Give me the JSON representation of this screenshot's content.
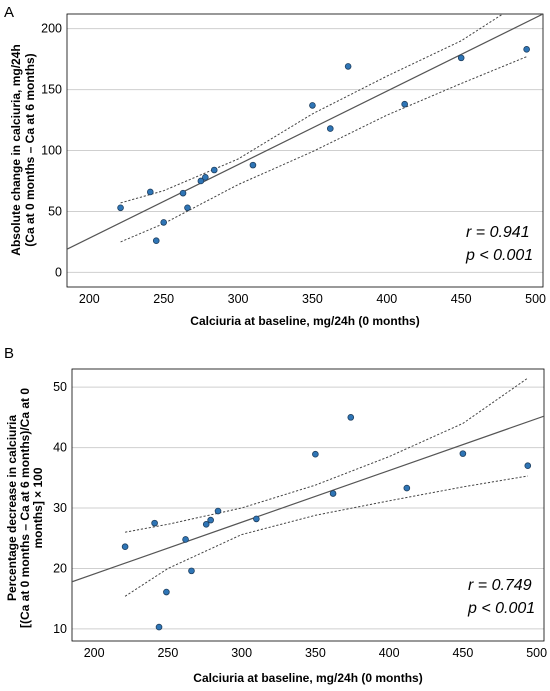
{
  "chart_data": [
    {
      "type": "scatter",
      "panel_label": "A",
      "xlabel": "Calciuria at baseline, mg/24h (0 months)",
      "ylabel_lines": [
        "Absolute change in calciuria, mg/24h",
        "(Ca at 0 months – Ca at 6 months)"
      ],
      "xlim": [
        185,
        505
      ],
      "ylim": [
        -12,
        212
      ],
      "xticks": [
        200,
        250,
        300,
        350,
        400,
        450,
        500
      ],
      "yticks": [
        0,
        50,
        100,
        150,
        200
      ],
      "grid": true,
      "points": [
        {
          "x": 221,
          "y": 53
        },
        {
          "x": 241,
          "y": 66
        },
        {
          "x": 245,
          "y": 26
        },
        {
          "x": 250,
          "y": 41
        },
        {
          "x": 263,
          "y": 65
        },
        {
          "x": 266,
          "y": 53
        },
        {
          "x": 275,
          "y": 75
        },
        {
          "x": 278,
          "y": 78
        },
        {
          "x": 284,
          "y": 84
        },
        {
          "x": 310,
          "y": 88
        },
        {
          "x": 350,
          "y": 137
        },
        {
          "x": 362,
          "y": 118
        },
        {
          "x": 374,
          "y": 169
        },
        {
          "x": 412,
          "y": 138
        },
        {
          "x": 450,
          "y": 176
        },
        {
          "x": 494,
          "y": 183
        }
      ],
      "fit_line": {
        "x": [
          185,
          505
        ],
        "y": [
          19,
          212
        ]
      },
      "ci_upper": {
        "x": [
          221,
          250,
          300,
          350,
          400,
          450,
          478
        ],
        "y": [
          57,
          67,
          93,
          130,
          161,
          190,
          212
        ]
      },
      "ci_lower": {
        "x": [
          221,
          250,
          300,
          350,
          400,
          450,
          494
        ],
        "y": [
          25,
          40,
          72,
          99,
          129,
          155,
          177
        ]
      },
      "stats": {
        "r": "r = 0.941",
        "p": "p < 0.001"
      },
      "colors": {
        "point_fill": "#2e75b6",
        "point_stroke": "#1f3f5f",
        "line": "#555555",
        "grid": "#cfcfcf"
      }
    },
    {
      "type": "scatter",
      "panel_label": "B",
      "xlabel": "Calciuria at baseline, mg/24h (0 months)",
      "ylabel_lines": [
        "Percentage decrease in calciuria",
        "[(Ca at 0 months – Ca at 6 months)/Ca at 0",
        "months] × 100"
      ],
      "xlim": [
        185,
        505
      ],
      "ylim": [
        8,
        53
      ],
      "xticks": [
        200,
        250,
        300,
        350,
        400,
        450,
        500
      ],
      "yticks": [
        10,
        20,
        30,
        40,
        50
      ],
      "grid": true,
      "points": [
        {
          "x": 221,
          "y": 23.6
        },
        {
          "x": 241,
          "y": 27.5
        },
        {
          "x": 244,
          "y": 10.3
        },
        {
          "x": 249,
          "y": 16.1
        },
        {
          "x": 262,
          "y": 24.8
        },
        {
          "x": 266,
          "y": 19.6
        },
        {
          "x": 276,
          "y": 27.3
        },
        {
          "x": 279,
          "y": 28.0
        },
        {
          "x": 284,
          "y": 29.5
        },
        {
          "x": 310,
          "y": 28.2
        },
        {
          "x": 350,
          "y": 38.9
        },
        {
          "x": 362,
          "y": 32.4
        },
        {
          "x": 374,
          "y": 45.0
        },
        {
          "x": 412,
          "y": 33.3
        },
        {
          "x": 450,
          "y": 39.0
        },
        {
          "x": 494,
          "y": 37.0
        }
      ],
      "fit_line": {
        "x": [
          185,
          505
        ],
        "y": [
          17.8,
          45.2
        ]
      },
      "ci_upper": {
        "x": [
          221,
          250,
          300,
          350,
          400,
          450,
          494
        ],
        "y": [
          26.0,
          27.3,
          30.0,
          33.8,
          38.5,
          44.0,
          51.5
        ]
      },
      "ci_lower": {
        "x": [
          221,
          250,
          300,
          350,
          400,
          450,
          494
        ],
        "y": [
          15.4,
          20.0,
          25.6,
          28.8,
          31.2,
          33.5,
          35.3
        ]
      },
      "stats": {
        "r": "r = 0.749",
        "p": "p < 0.001"
      },
      "colors": {
        "point_fill": "#2e75b6",
        "point_stroke": "#1f3f5f",
        "line": "#555555",
        "grid": "#cfcfcf"
      }
    }
  ]
}
